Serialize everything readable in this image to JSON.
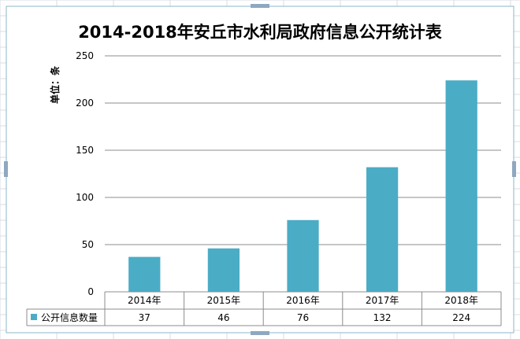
{
  "colors": {
    "bar": "#4bacc6",
    "grid": "#8c8c8c",
    "border": "#8eb4c8",
    "sheet_grid": "#d9dee4"
  },
  "chart_data": {
    "type": "bar",
    "title": "2014-2018年安丘市水利局政府信息公开统计表",
    "ylabel": "单位：条",
    "xlabel": "",
    "categories": [
      "2014年",
      "2015年",
      "2016年",
      "2017年",
      "2018年"
    ],
    "series": [
      {
        "name": "公开信息数量",
        "values": [
          37,
          46,
          76,
          132,
          224
        ]
      }
    ],
    "ylim": [
      0,
      250
    ],
    "yticks": [
      0,
      50,
      100,
      150,
      200,
      250
    ],
    "grid": true,
    "legend": "bottom-left in data table"
  }
}
